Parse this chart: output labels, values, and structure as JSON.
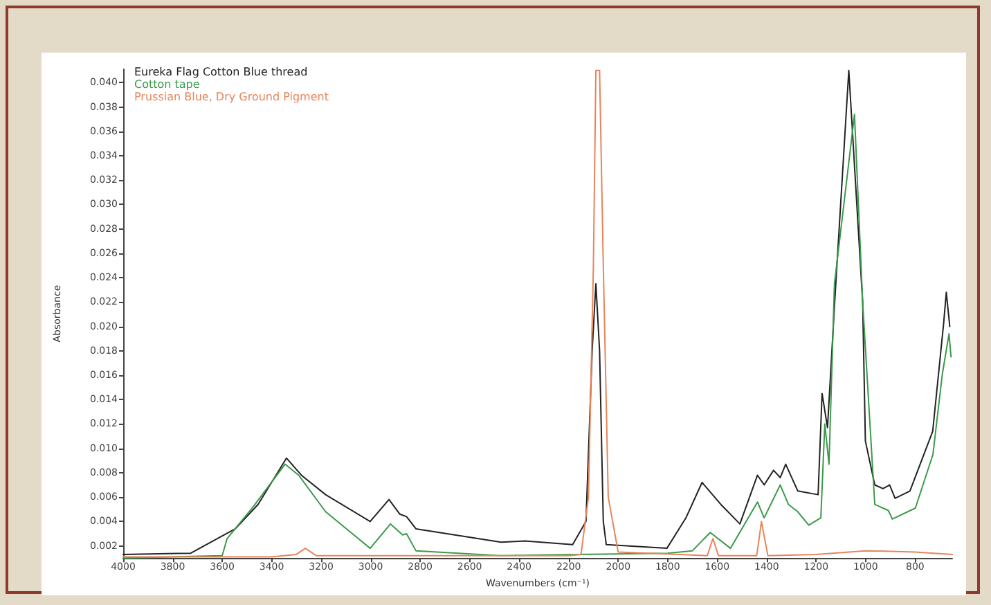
{
  "chart_data": {
    "type": "line",
    "xlabel": "Wavenumbers (cm⁻¹)",
    "ylabel": "Absorbance",
    "legend": "top left",
    "grid": false,
    "xlim": [
      4000,
      650
    ],
    "xticks": [
      4000,
      3800,
      3600,
      3400,
      3200,
      3000,
      2800,
      2600,
      2400,
      2200,
      2000,
      1800,
      1600,
      1400,
      1200,
      1000,
      800
    ],
    "ylim": [
      0.001,
      0.0411
    ],
    "yticks": [
      {
        "value": 0.002,
        "label": "0.002"
      },
      {
        "value": 0.004,
        "label": "0.004"
      },
      {
        "value": 0.006,
        "label": "0.006"
      },
      {
        "value": 0.008,
        "label": "0.008"
      },
      {
        "value": 0.01,
        "label": "0.010"
      },
      {
        "value": 0.012,
        "label": "0.012"
      },
      {
        "value": 0.014,
        "label": "0.014"
      },
      {
        "value": 0.016,
        "label": "0.016"
      },
      {
        "value": 0.018,
        "label": "0.018"
      },
      {
        "value": 0.02,
        "label": "0.020"
      },
      {
        "value": 0.022,
        "label": "0.022"
      },
      {
        "value": 0.024,
        "label": "0.024"
      },
      {
        "value": 0.026,
        "label": "0.026"
      },
      {
        "value": 0.028,
        "label": "0.028"
      },
      {
        "value": 0.03,
        "label": "0.030"
      },
      {
        "value": 0.032,
        "label": "0.032"
      },
      {
        "value": 0.034,
        "label": "0.034"
      },
      {
        "value": 0.036,
        "label": "0.036"
      },
      {
        "value": 0.038,
        "label": "0.038"
      },
      {
        "value": 0.04,
        "label": "0.040"
      }
    ],
    "series": [
      {
        "name": "Eureka Flag Cotton Blue thread",
        "color": "#222222",
        "x": [
          4000,
          3727,
          3547,
          3455,
          3340,
          3280,
          3182,
          3002,
          2926,
          2882,
          2855,
          2817,
          2473,
          2375,
          2184,
          2130,
          2105,
          2090,
          2075,
          2060,
          2048,
          1803,
          1726,
          1661,
          1585,
          1508,
          1437,
          1410,
          1372,
          1345,
          1323,
          1274,
          1192,
          1176,
          1154,
          1125,
          1068,
          1012,
          1001,
          963,
          930,
          903,
          881,
          821,
          729,
          685,
          674,
          660
        ],
        "values": [
          0.0013,
          0.0014,
          0.0034,
          0.0054,
          0.0092,
          0.0078,
          0.0062,
          0.004,
          0.0058,
          0.0046,
          0.0044,
          0.0034,
          0.0023,
          0.0024,
          0.0021,
          0.004,
          0.018,
          0.0235,
          0.018,
          0.004,
          0.0021,
          0.0018,
          0.0043,
          0.0072,
          0.0054,
          0.0038,
          0.0078,
          0.007,
          0.0082,
          0.0076,
          0.0087,
          0.0065,
          0.0062,
          0.0145,
          0.0117,
          0.022,
          0.041,
          0.022,
          0.0106,
          0.007,
          0.0067,
          0.007,
          0.0059,
          0.0065,
          0.0114,
          0.0202,
          0.0228,
          0.02
        ]
      },
      {
        "name": "Cotton tape",
        "color": "#3a9a4a",
        "x": [
          4000,
          3600,
          3580,
          3471,
          3346,
          3291,
          3182,
          3002,
          2920,
          2871,
          2855,
          2817,
          2473,
          1800,
          1700,
          1628,
          1546,
          1437,
          1410,
          1345,
          1312,
          1274,
          1230,
          1181,
          1165,
          1148,
          1126,
          1045,
          1012,
          963,
          908,
          892,
          799,
          728,
          690,
          663,
          655
        ],
        "values": [
          0.001,
          0.0012,
          0.0026,
          0.0053,
          0.0087,
          0.0078,
          0.0048,
          0.0018,
          0.0038,
          0.0029,
          0.003,
          0.0016,
          0.0012,
          0.0014,
          0.0016,
          0.0031,
          0.0018,
          0.0056,
          0.0043,
          0.007,
          0.0054,
          0.0048,
          0.0037,
          0.0043,
          0.012,
          0.0087,
          0.0235,
          0.0374,
          0.022,
          0.0054,
          0.0049,
          0.0042,
          0.0051,
          0.0095,
          0.0161,
          0.0194,
          0.0175
        ]
      },
      {
        "name": "Prussian Blue, Dry Ground Pigment",
        "color": "#e8845a",
        "x": [
          4000,
          3400,
          3300,
          3264,
          3220,
          2200,
          2150,
          2120,
          2100,
          2090,
          2075,
          2060,
          2040,
          2000,
          1640,
          1617,
          1595,
          1440,
          1421,
          1395,
          1200,
          1000,
          800,
          650
        ],
        "values": [
          0.0011,
          0.0011,
          0.0013,
          0.0018,
          0.0012,
          0.0012,
          0.0013,
          0.006,
          0.025,
          0.041,
          0.041,
          0.025,
          0.006,
          0.0015,
          0.0012,
          0.0026,
          0.0012,
          0.0012,
          0.004,
          0.0012,
          0.0013,
          0.0016,
          0.0015,
          0.0013
        ]
      }
    ]
  }
}
